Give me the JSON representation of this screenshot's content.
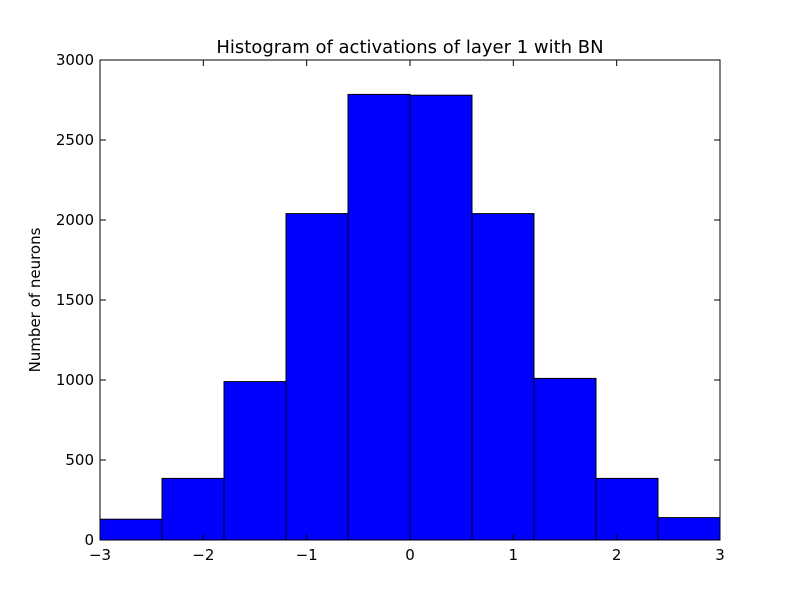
{
  "chart_data": {
    "type": "bar",
    "title": "Histogram of activations of layer 1  with BN",
    "xlabel": "",
    "ylabel": "Number of neurons",
    "xlim": [
      -3,
      3
    ],
    "ylim": [
      0,
      3000
    ],
    "grid": false,
    "bins": [
      {
        "x0": -3.0,
        "x1": -2.4,
        "count": 130
      },
      {
        "x0": -2.4,
        "x1": -1.8,
        "count": 385
      },
      {
        "x0": -1.8,
        "x1": -1.2,
        "count": 990
      },
      {
        "x0": -1.2,
        "x1": -0.6,
        "count": 2040
      },
      {
        "x0": -0.6,
        "x1": 0.0,
        "count": 2785
      },
      {
        "x0": 0.0,
        "x1": 0.6,
        "count": 2780
      },
      {
        "x0": 0.6,
        "x1": 1.2,
        "count": 2040
      },
      {
        "x0": 1.2,
        "x1": 1.8,
        "count": 1010
      },
      {
        "x0": 1.8,
        "x1": 2.4,
        "count": 385
      },
      {
        "x0": 2.4,
        "x1": 3.0,
        "count": 140
      }
    ],
    "x_ticks": [
      -3,
      -2,
      -1,
      0,
      1,
      2,
      3
    ],
    "x_tick_labels": [
      "−3",
      "−2",
      "−1",
      "0",
      "1",
      "2",
      "3"
    ],
    "y_ticks": [
      0,
      500,
      1000,
      1500,
      2000,
      2500,
      3000
    ],
    "y_tick_labels": [
      "0",
      "500",
      "1000",
      "1500",
      "2000",
      "2500",
      "3000"
    ],
    "colors": {
      "bar_fill": "#0000ff",
      "bar_edge": "#000000",
      "axes": "#000000"
    }
  }
}
